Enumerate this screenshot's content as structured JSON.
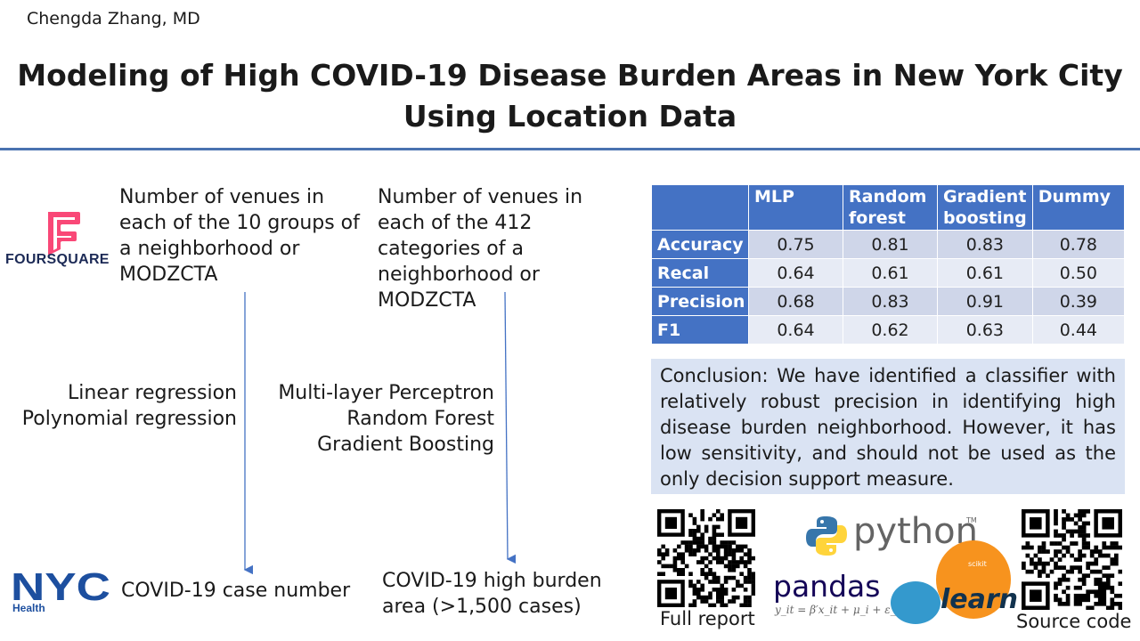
{
  "author": "Chengda Zhang, MD",
  "title_line1": "Modeling of High COVID-19 Disease Burden Areas in New York City",
  "title_line2": "Using Location Data",
  "foursquare": {
    "name": "FOURSQUARE",
    "color": "#f94877"
  },
  "left_description": "Number of venues in each of the 10 groups of a neighborhood or MODZCTA",
  "right_description": "Number of venues in each of the 412 categories of a neighborhood or MODZCTA",
  "left_models": [
    "Linear regression",
    "Polynomial regression"
  ],
  "right_models": [
    "Multi-layer Perceptron",
    "Random Forest",
    "Gradient Boosting"
  ],
  "nyc": {
    "logo_text": "NYC",
    "sub": "Health",
    "color": "#1d4f9f"
  },
  "left_outcome": "COVID-19 case number",
  "right_outcome": "COVID-19 high burden area (>1,500 cases)",
  "metrics_table": {
    "headers": [
      "",
      "MLP",
      "Random forest",
      "Gradient boosting",
      "Dummy"
    ],
    "rows": [
      {
        "label": "Accuracy",
        "values": [
          "0.75",
          "0.81",
          "0.83",
          "0.78"
        ]
      },
      {
        "label": "Recal",
        "values": [
          "0.64",
          "0.61",
          "0.61",
          "0.50"
        ]
      },
      {
        "label": "Precision",
        "values": [
          "0.68",
          "0.83",
          "0.91",
          "0.39"
        ]
      },
      {
        "label": "F1",
        "values": [
          "0.64",
          "0.62",
          "0.63",
          "0.44"
        ]
      }
    ]
  },
  "conclusion": "Conclusion: We have identified a classifier with relatively robust precision in identifying high disease burden neighborhood. However, it has low sensitivity, and should not be used as the only decision support measure.",
  "qr_left_label": "Full report",
  "qr_right_label": "Source code",
  "python_word": "python",
  "python_tm": "TM",
  "pandas_word": "pandas",
  "pandas_formula": "y_it = β′x_it + μ_i + ε_it",
  "sklearn_scikit": "scikit",
  "sklearn_learn": "learn",
  "colors": {
    "accent": "#4472c4",
    "table_light": "#cfd6e9",
    "conclusion_bg": "#dae3f3"
  }
}
